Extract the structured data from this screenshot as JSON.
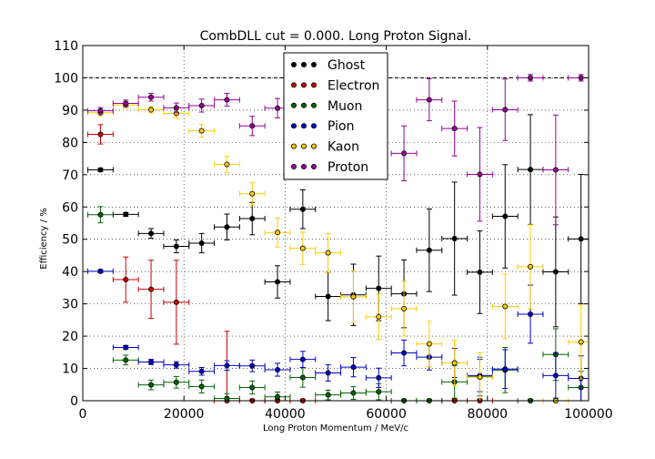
{
  "chart_data": {
    "type": "scatter",
    "title": "CombDLL cut = 0.000. Long Proton Signal.",
    "xlabel": "Long Proton Momentum / MeV/c",
    "ylabel": "Efficiency / %",
    "xlim": [
      0,
      100000
    ],
    "ylim": [
      0,
      110
    ],
    "xticks": [
      0,
      20000,
      40000,
      60000,
      80000,
      100000
    ],
    "yticks": [
      0,
      10,
      20,
      30,
      40,
      50,
      60,
      70,
      80,
      90,
      100,
      110
    ],
    "grid": true,
    "reference_line": 100,
    "legend_position": "upper-center",
    "series": [
      {
        "name": "Ghost",
        "color": "#000000",
        "points": [
          {
            "x": 3500,
            "y": 71.5,
            "yerr": 0.5
          },
          {
            "x": 8500,
            "y": 57.7,
            "yerr": 0.6
          },
          {
            "x": 13500,
            "y": 51.8,
            "yerr": 1.5
          },
          {
            "x": 18500,
            "y": 47.8,
            "yerr": 2.0
          },
          {
            "x": 23500,
            "y": 48.8,
            "yerr": 3.0
          },
          {
            "x": 28500,
            "y": 53.8,
            "yerr": 4.0
          },
          {
            "x": 33500,
            "y": 56.4,
            "yerr": 5.0
          },
          {
            "x": 38500,
            "y": 36.8,
            "yerr": 5.0
          },
          {
            "x": 43500,
            "y": 59.3,
            "yerr": 6.0
          },
          {
            "x": 48500,
            "y": 32.3,
            "yerr": 7.5
          },
          {
            "x": 53500,
            "y": 32.8,
            "yerr": 9.5
          },
          {
            "x": 58500,
            "y": 34.8,
            "yerr": 10.0
          },
          {
            "x": 63500,
            "y": 33.1,
            "yerr": 10.5
          },
          {
            "x": 68500,
            "y": 46.6,
            "yerr": 12.8
          },
          {
            "x": 73500,
            "y": 50.2,
            "yerr": 17.5
          },
          {
            "x": 78500,
            "y": 39.8,
            "yerr": 12.8
          },
          {
            "x": 83500,
            "y": 57.1,
            "yerr": 16.0
          },
          {
            "x": 88500,
            "y": 71.6,
            "yerr": 17.0
          },
          {
            "x": 93500,
            "y": 39.9,
            "yerr": 17.0
          },
          {
            "x": 98500,
            "y": 50.1,
            "yerr": 20.0
          }
        ]
      },
      {
        "name": "Electron",
        "color": "#cc0000",
        "points": [
          {
            "x": 3500,
            "y": 82.5,
            "yerr": 3.0
          },
          {
            "x": 8500,
            "y": 37.5,
            "yerr": 7.0
          },
          {
            "x": 13500,
            "y": 34.5,
            "yerr": 9.0
          },
          {
            "x": 18500,
            "y": 30.5,
            "yerr": 13.0
          },
          {
            "x": 28500,
            "y": 0.0,
            "yerr": 21.5
          },
          {
            "x": 33500,
            "y": 0.0,
            "yerr": 0.5
          },
          {
            "x": 38500,
            "y": 0.0,
            "yerr": 0.5
          },
          {
            "x": 43500,
            "y": 0.0,
            "yerr": 0.5
          },
          {
            "x": 73500,
            "y": 0.0,
            "yerr": 0.5
          },
          {
            "x": 78500,
            "y": 0.0,
            "yerr": 0.5
          }
        ]
      },
      {
        "name": "Muon",
        "color": "#006600",
        "points": [
          {
            "x": 3500,
            "y": 57.6,
            "yerr": 2.5
          },
          {
            "x": 8500,
            "y": 12.6,
            "yerr": 1.5
          },
          {
            "x": 13500,
            "y": 4.9,
            "yerr": 1.5
          },
          {
            "x": 18500,
            "y": 5.7,
            "yerr": 1.8
          },
          {
            "x": 23500,
            "y": 4.4,
            "yerr": 2.0
          },
          {
            "x": 28500,
            "y": 0.7,
            "yerr": 1.5
          },
          {
            "x": 33500,
            "y": 4.1,
            "yerr": 2.0
          },
          {
            "x": 38500,
            "y": 1.2,
            "yerr": 1.5
          },
          {
            "x": 43500,
            "y": 7.2,
            "yerr": 3.0
          },
          {
            "x": 48500,
            "y": 1.8,
            "yerr": 1.5
          },
          {
            "x": 53500,
            "y": 2.4,
            "yerr": 2.0
          },
          {
            "x": 58500,
            "y": 2.8,
            "yerr": 2.5
          },
          {
            "x": 63500,
            "y": 0.0,
            "yerr": 0.5
          },
          {
            "x": 68500,
            "y": 0.0,
            "yerr": 0.5
          },
          {
            "x": 73500,
            "y": 5.8,
            "yerr": 5.0
          },
          {
            "x": 78500,
            "y": 7.5,
            "yerr": 6.0
          },
          {
            "x": 83500,
            "y": 9.5,
            "yerr": 7.0
          },
          {
            "x": 88500,
            "y": 0.0,
            "yerr": 0.5
          },
          {
            "x": 93500,
            "y": 14.3,
            "yerr": 8.0
          },
          {
            "x": 98500,
            "y": 4.1,
            "yerr": 5.0
          }
        ]
      },
      {
        "name": "Pion",
        "color": "#0000cc",
        "points": [
          {
            "x": 3500,
            "y": 40.1,
            "yerr": 0.5
          },
          {
            "x": 8500,
            "y": 16.5,
            "yerr": 0.6
          },
          {
            "x": 13500,
            "y": 12.0,
            "yerr": 0.8
          },
          {
            "x": 18500,
            "y": 11.1,
            "yerr": 1.0
          },
          {
            "x": 23500,
            "y": 9.1,
            "yerr": 1.2
          },
          {
            "x": 28500,
            "y": 10.9,
            "yerr": 1.5
          },
          {
            "x": 33500,
            "y": 10.8,
            "yerr": 1.8
          },
          {
            "x": 38500,
            "y": 9.6,
            "yerr": 2.0
          },
          {
            "x": 43500,
            "y": 12.8,
            "yerr": 2.5
          },
          {
            "x": 48500,
            "y": 8.6,
            "yerr": 2.5
          },
          {
            "x": 53500,
            "y": 10.4,
            "yerr": 3.0
          },
          {
            "x": 58500,
            "y": 7.1,
            "yerr": 3.0
          },
          {
            "x": 63500,
            "y": 14.8,
            "yerr": 4.0
          },
          {
            "x": 68500,
            "y": 13.5,
            "yerr": 4.0
          },
          {
            "x": 73500,
            "y": 11.7,
            "yerr": 4.5
          },
          {
            "x": 78500,
            "y": 7.8,
            "yerr": 5.0
          },
          {
            "x": 83500,
            "y": 9.8,
            "yerr": 6.0
          },
          {
            "x": 88500,
            "y": 26.8,
            "yerr": 9.0
          },
          {
            "x": 93500,
            "y": 7.8,
            "yerr": 7.0
          },
          {
            "x": 98500,
            "y": 6.9,
            "yerr": 7.0
          }
        ]
      },
      {
        "name": "Kaon",
        "color": "#ffcc00",
        "points": [
          {
            "x": 3500,
            "y": 89.2,
            "yerr": 1.0
          },
          {
            "x": 8500,
            "y": 91.6,
            "yerr": 1.0
          },
          {
            "x": 13500,
            "y": 90.1,
            "yerr": 1.0
          },
          {
            "x": 18500,
            "y": 89.0,
            "yerr": 1.5
          },
          {
            "x": 23500,
            "y": 83.6,
            "yerr": 2.0
          },
          {
            "x": 28500,
            "y": 73.2,
            "yerr": 2.5
          },
          {
            "x": 33500,
            "y": 64.1,
            "yerr": 3.5
          },
          {
            "x": 38500,
            "y": 52.1,
            "yerr": 4.5
          },
          {
            "x": 43500,
            "y": 47.2,
            "yerr": 5.0
          },
          {
            "x": 48500,
            "y": 45.8,
            "yerr": 6.0
          },
          {
            "x": 53500,
            "y": 32.2,
            "yerr": 8.0
          },
          {
            "x": 58500,
            "y": 26.0,
            "yerr": 7.0
          },
          {
            "x": 63500,
            "y": 28.5,
            "yerr": 8.5
          },
          {
            "x": 68500,
            "y": 17.6,
            "yerr": 7.0
          },
          {
            "x": 73500,
            "y": 11.7,
            "yerr": 7.0
          },
          {
            "x": 78500,
            "y": 7.3,
            "yerr": 7.5
          },
          {
            "x": 83500,
            "y": 29.2,
            "yerr": 10.0
          },
          {
            "x": 88500,
            "y": 41.5,
            "yerr": 13.0
          },
          {
            "x": 93500,
            "y": 0.0,
            "yerr": 0.5
          },
          {
            "x": 98500,
            "y": 18.2,
            "yerr": 11.5
          }
        ]
      },
      {
        "name": "Proton",
        "color": "#990099",
        "points": [
          {
            "x": 3500,
            "y": 89.8,
            "yerr": 1.0
          },
          {
            "x": 8500,
            "y": 92.1,
            "yerr": 1.0
          },
          {
            "x": 13500,
            "y": 94.0,
            "yerr": 1.2
          },
          {
            "x": 18500,
            "y": 90.7,
            "yerr": 1.5
          },
          {
            "x": 23500,
            "y": 91.4,
            "yerr": 2.0
          },
          {
            "x": 28500,
            "y": 93.2,
            "yerr": 2.0
          },
          {
            "x": 33500,
            "y": 85.1,
            "yerr": 3.0
          },
          {
            "x": 38500,
            "y": 90.6,
            "yerr": 3.0
          },
          {
            "x": 63500,
            "y": 76.6,
            "yerr": 8.5
          },
          {
            "x": 68500,
            "y": 93.2,
            "yerr": 6.5
          },
          {
            "x": 73500,
            "y": 84.3,
            "yerr": 8.5
          },
          {
            "x": 78500,
            "y": 70.1,
            "yerr": 14.5
          },
          {
            "x": 83500,
            "y": 90.1,
            "yerr": 9.5
          },
          {
            "x": 88500,
            "y": 100.0,
            "yerr": 1.0
          },
          {
            "x": 93500,
            "y": 71.5,
            "yerr": 17.0
          },
          {
            "x": 98500,
            "y": 100.0,
            "yerr": 1.0
          }
        ]
      }
    ]
  }
}
